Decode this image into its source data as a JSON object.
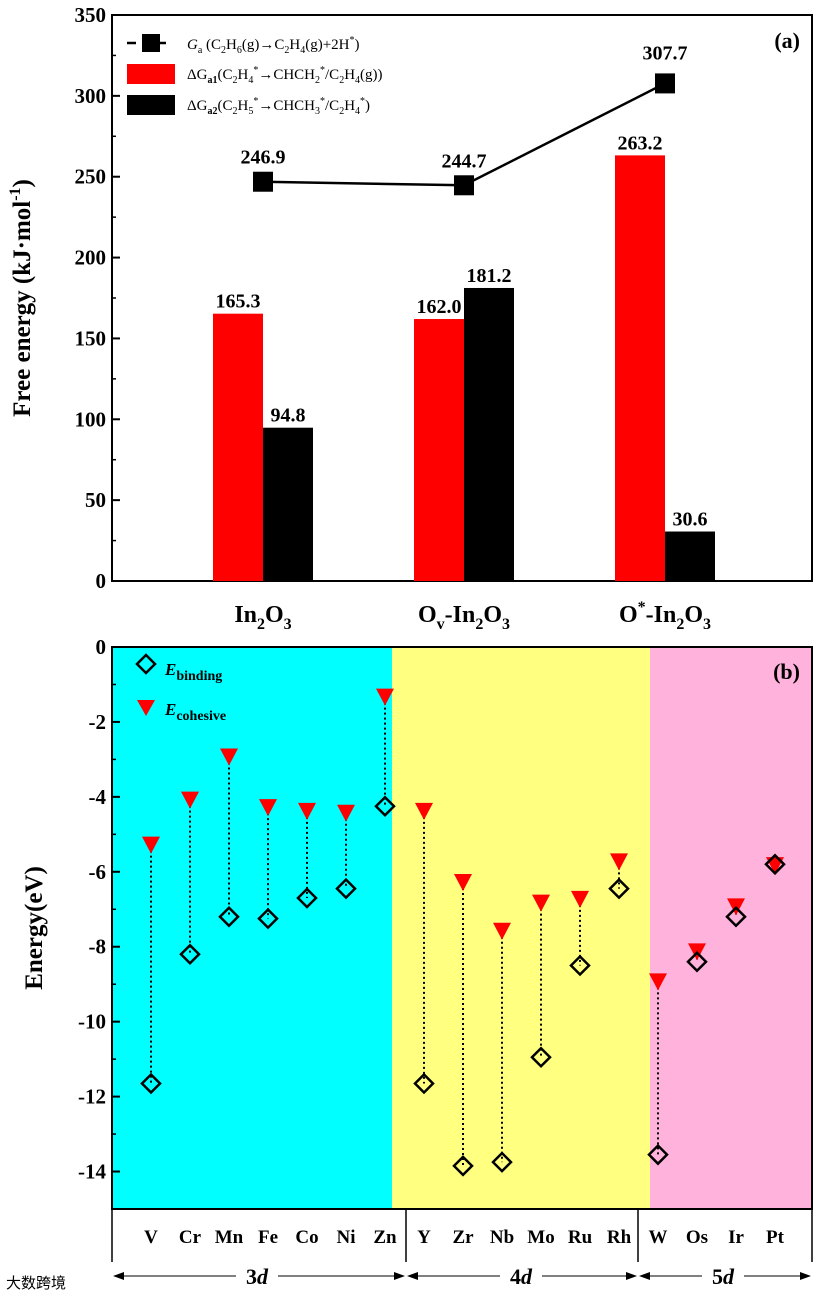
{
  "colors": {
    "red": "#ff0000",
    "black": "#000000",
    "cyan": "#00ffff",
    "yellow": "#ffff80",
    "pink": "#ffb3dc"
  },
  "watermark": "大数跨境",
  "chart_data": [
    {
      "type": "bar",
      "panel_label": "(a)",
      "ylabel": "Free energy (kJ·mol",
      "ylabel_sup": "-1",
      "ylabel_close": ")",
      "ylim": [
        0,
        350
      ],
      "yticks": [
        0,
        50,
        100,
        150,
        200,
        250,
        300,
        350
      ],
      "categories": [
        {
          "main": "In",
          "s1": "2",
          "mid": "O",
          "s2": "3"
        },
        {
          "main": "O",
          "sub": "v",
          "rest": "-In",
          "s1": "2",
          "mid": "O",
          "s2": "3"
        },
        {
          "main": "O",
          "sup": "*",
          "rest": "-In",
          "s1": "2",
          "mid": "O",
          "s2": "3"
        }
      ],
      "series": [
        {
          "name": "ΔGa1(C2H4*→CHCH2*/C2H4(g))",
          "kind": "bar",
          "color": "#ff0000",
          "values": [
            165.3,
            162.0,
            263.2
          ],
          "labels": [
            "165.3",
            "162.0",
            "263.2"
          ]
        },
        {
          "name": "ΔGa2(C2H5*→CHCH3*/C2H4*)",
          "kind": "bar",
          "color": "#000000",
          "values": [
            94.8,
            181.2,
            30.6
          ],
          "labels": [
            "94.8",
            "181.2",
            "30.6"
          ]
        },
        {
          "name": "Ga (C2H6(g)→C2H4(g)+2H*)",
          "kind": "line-square",
          "color": "#000000",
          "values": [
            246.9,
            244.7,
            307.7
          ],
          "labels": [
            "246.9",
            "244.7",
            "307.7"
          ]
        }
      ],
      "legend": [
        {
          "t1": "G",
          "t2": "a",
          "t3": " (C",
          "t4": "2",
          "t5": "H",
          "t6": "6",
          "t7": "(g)→C",
          "t8": "2",
          "t9": "H",
          "t10": "4",
          "t11": "(g)+2H",
          "t12": "*",
          "t13": ")"
        },
        {
          "t1": "ΔG",
          "t2": "a1",
          "t3": "(C",
          "t4": "2",
          "t5": "H",
          "t6": "4",
          "t7": "*",
          "t8": "→CHCH",
          "t9": "2",
          "t10": "*",
          "t11": "/C",
          "t12": "2",
          "t13": "H",
          "t14": "4",
          "t15": "(g))"
        },
        {
          "t1": "ΔG",
          "t2": "a2",
          "t3": "(C",
          "t4": "2",
          "t5": "H",
          "t6": "5",
          "t7": "*",
          "t8": "→CHCH",
          "t9": "3",
          "t10": "*",
          "t11": "/C",
          "t12": "2",
          "t13": "H",
          "t14": "4",
          "t15": "*",
          "t16": ")"
        }
      ]
    },
    {
      "type": "scatter",
      "panel_label": "(b)",
      "ylabel": "Energy(eV)",
      "ylim": [
        -15,
        0
      ],
      "yticks": [
        0,
        -2,
        -4,
        -6,
        -8,
        -10,
        -12,
        -14
      ],
      "ytick_labels": [
        "0",
        "-2",
        "-4",
        "-6",
        "-8",
        "-10",
        "-12",
        "-14"
      ],
      "elements": [
        "V",
        "Cr",
        "Mn",
        "Fe",
        "Co",
        "Ni",
        "Zn",
        "Y",
        "Zr",
        "Nb",
        "Mo",
        "Ru",
        "Rh",
        "W",
        "Os",
        "Ir",
        "Pt"
      ],
      "series": [
        {
          "name": "E_binding",
          "kind": "diamond",
          "values": [
            -11.65,
            -8.2,
            -7.2,
            -7.25,
            -6.7,
            -6.45,
            -4.25,
            -11.65,
            -13.85,
            -13.75,
            -10.95,
            -8.5,
            -6.45,
            -13.55,
            -8.4,
            -7.2,
            -5.8
          ]
        },
        {
          "name": "E_cohesive",
          "kind": "triangle-down",
          "values": [
            -5.3,
            -4.1,
            -2.95,
            -4.3,
            -4.4,
            -4.45,
            -1.35,
            -4.4,
            -6.3,
            -7.6,
            -6.85,
            -6.75,
            -5.75,
            -8.95,
            -8.15,
            -6.95,
            -5.85
          ]
        }
      ],
      "legend": [
        {
          "italic": "E",
          "sub": "binding"
        },
        {
          "italic": "E",
          "sub": "cohesive"
        }
      ],
      "groups": [
        {
          "label": "3d",
          "num": "3",
          "ital": "d"
        },
        {
          "label": "4d",
          "num": "4",
          "ital": "d"
        },
        {
          "label": "5d",
          "num": "5",
          "ital": "d"
        }
      ]
    }
  ]
}
